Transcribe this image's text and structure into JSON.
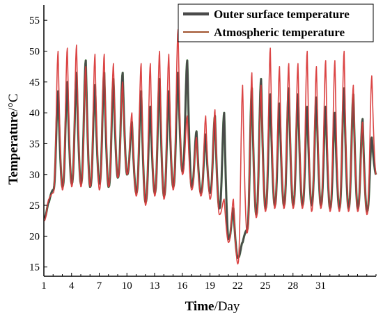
{
  "chart_data": {
    "type": "line",
    "xlabel_bold": "Time",
    "xlabel_rest": "/Day",
    "ylabel_bold": "Temperature",
    "ylabel_rest": "/°C",
    "xlim": [
      1,
      37
    ],
    "ylim": [
      13.5,
      57.5
    ],
    "x_ticks": [
      1,
      4,
      7,
      10,
      13,
      16,
      19,
      22,
      25,
      28,
      31
    ],
    "y_ticks": [
      15,
      20,
      25,
      30,
      35,
      40,
      45,
      50,
      55
    ],
    "grid": false,
    "legend_position": "top-right",
    "colors": {
      "outer": "#4a4a4a",
      "atmos": "#d93b3b",
      "atmos_legend": "#a0522d",
      "band": "#3a8a3a"
    },
    "series": [
      {
        "name": "Outer surface temperature",
        "daily_max": [
          25.5,
          43.5,
          45,
          46.5,
          48.5,
          44.5,
          46.5,
          45.5,
          46.5,
          38.5,
          43.5,
          41,
          45.5,
          43.5,
          46.5,
          48.5,
          37,
          36.5,
          39.5,
          40,
          24.5,
          19,
          44,
          45.5,
          43,
          41.5,
          44,
          43,
          41,
          42.5,
          41,
          40,
          44,
          43,
          39,
          36,
          43.5
        ],
        "daily_min": [
          23,
          27.5,
          28,
          28.5,
          28.5,
          28,
          28.5,
          28,
          29.5,
          30,
          27,
          25.5,
          27,
          26.5,
          28,
          30.5,
          28,
          27,
          27,
          24.5,
          19.5,
          16.5,
          21,
          23.5,
          24.5,
          25,
          25,
          25,
          25,
          25,
          25,
          24.5,
          24.5,
          24.5,
          24.5,
          24,
          30
        ]
      },
      {
        "name": "Atmospheric temperature",
        "daily_max": [
          26,
          50,
          50.5,
          51,
          47.5,
          49.5,
          49.5,
          48,
          45,
          40,
          48,
          48,
          50,
          49.5,
          53.5,
          39.5,
          36,
          39.5,
          40.5,
          26,
          26,
          44.5,
          46.5,
          44.5,
          50.5,
          47.5,
          48,
          48,
          50,
          47.5,
          48.5,
          48.5,
          50,
          44.5,
          38.5,
          46,
          44.5
        ],
        "daily_min": [
          22.5,
          27,
          27.5,
          28,
          28,
          28,
          27.5,
          28,
          29.5,
          30,
          26.5,
          25,
          26.5,
          26,
          27.5,
          30,
          27.5,
          26.5,
          26,
          23.5,
          19,
          15.5,
          20.5,
          23,
          24,
          24.5,
          24.5,
          24.5,
          24.5,
          24,
          24.5,
          24,
          24,
          24,
          24,
          23.5,
          30
        ]
      }
    ]
  }
}
